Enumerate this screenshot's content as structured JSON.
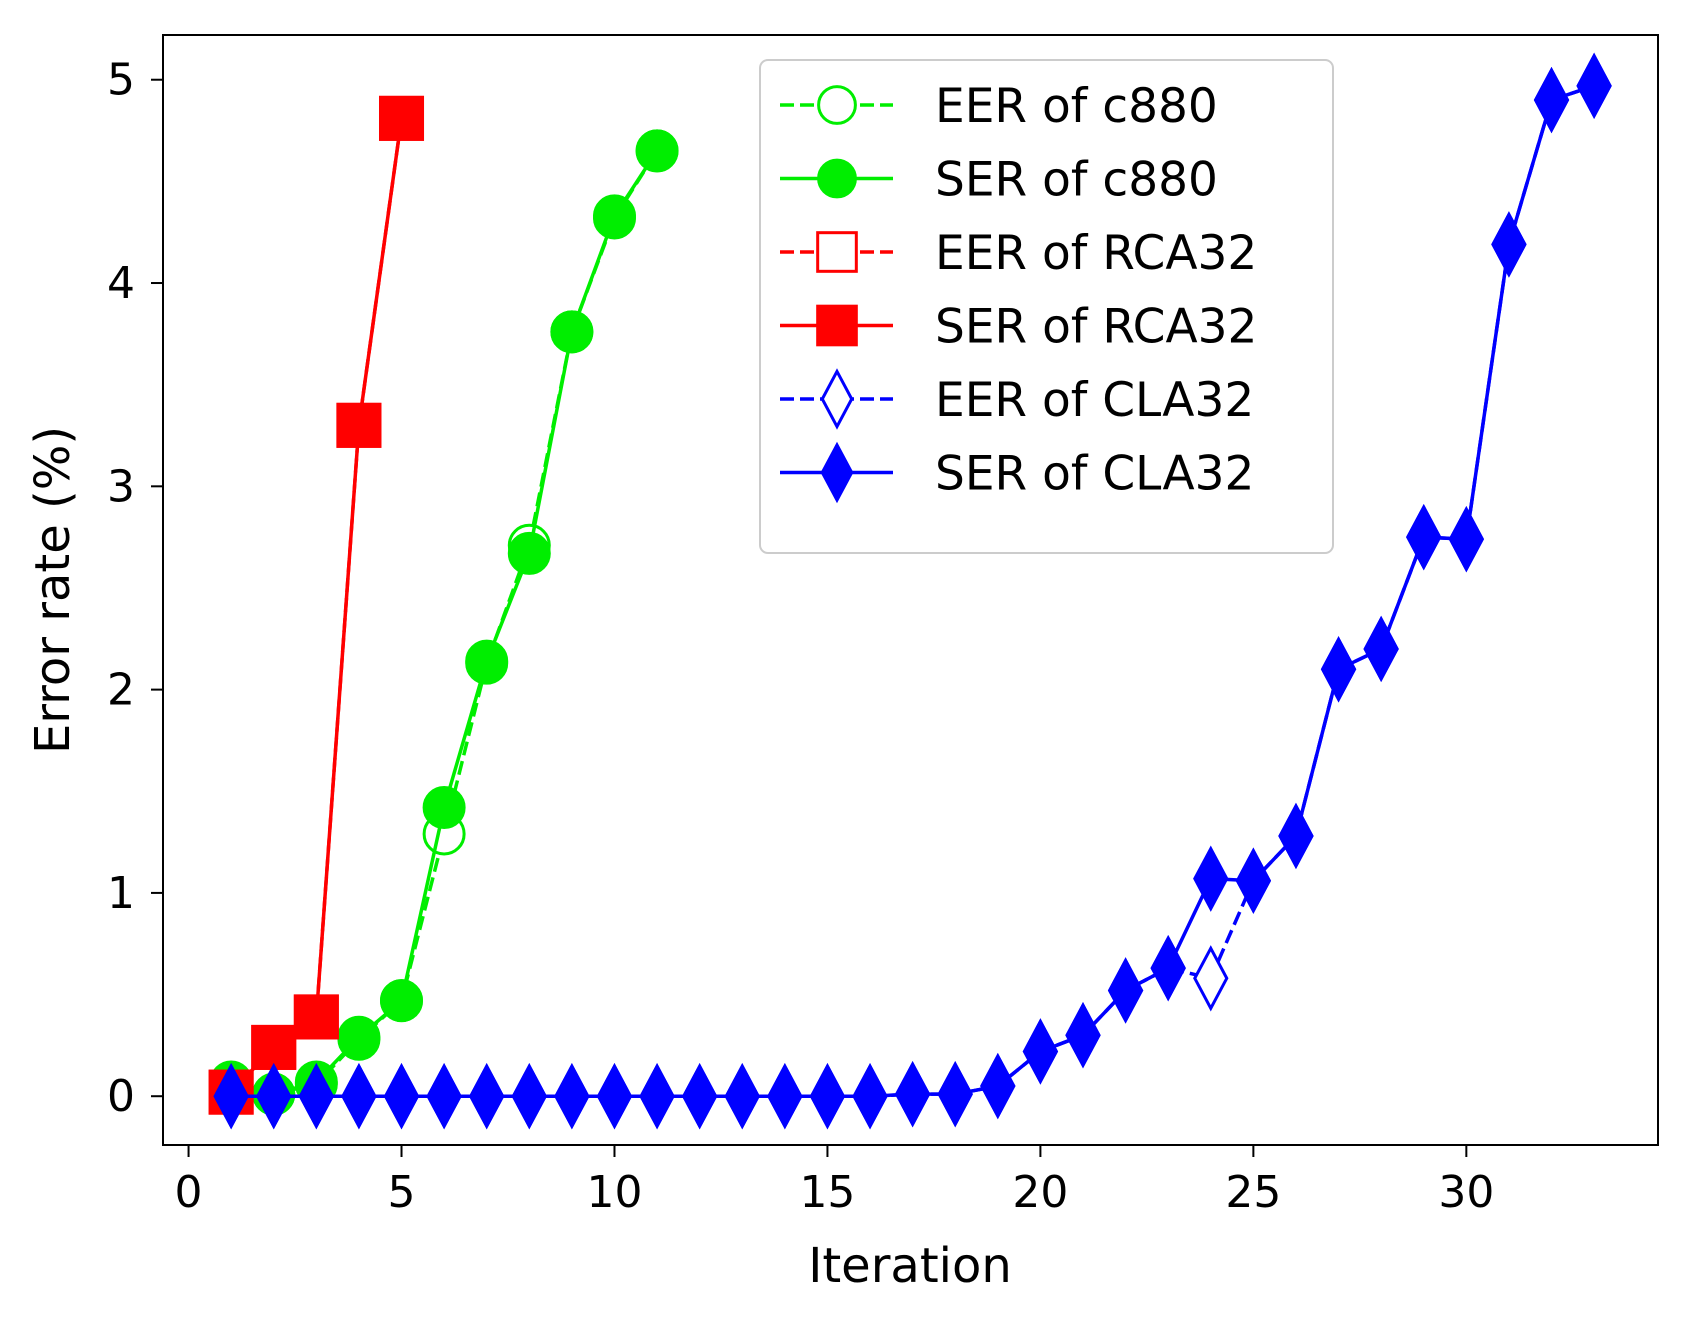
{
  "chart_data": {
    "type": "line",
    "title": "",
    "xlabel": "Iteration",
    "ylabel": "Error rate (%)",
    "xlim": [
      -0.6,
      34.5
    ],
    "ylim": [
      -0.24,
      5.22
    ],
    "xticks": [
      "0",
      "5",
      "10",
      "15",
      "20",
      "25",
      "30"
    ],
    "yticks": [
      "0",
      "1",
      "2",
      "3",
      "4",
      "5"
    ],
    "grid": false,
    "legend_position": "top-center",
    "series": [
      {
        "name": "EER of c880",
        "color": "#00ee00",
        "line_style": "dashed",
        "marker": "circle",
        "marker_fill": "none",
        "x": [
          1,
          2,
          3,
          4,
          5,
          6,
          7,
          8,
          9,
          10,
          11
        ],
        "y": [
          0.06,
          0.01,
          0.06,
          0.28,
          0.47,
          1.29,
          2.13,
          2.71,
          3.76,
          4.32,
          4.65
        ]
      },
      {
        "name": "SER of c880",
        "color": "#00ee00",
        "line_style": "solid",
        "marker": "circle",
        "marker_fill": "filled",
        "x": [
          1,
          2,
          3,
          4,
          5,
          6,
          7,
          8,
          9,
          10,
          11
        ],
        "y": [
          0.07,
          0.01,
          0.07,
          0.29,
          0.47,
          1.42,
          2.14,
          2.67,
          3.76,
          4.33,
          4.65
        ]
      },
      {
        "name": "EER of RCA32",
        "color": "#ff0000",
        "line_style": "dashed",
        "marker": "square",
        "marker_fill": "none",
        "x": [
          1,
          2,
          3,
          4,
          5
        ],
        "y": [
          0.02,
          0.24,
          0.39,
          3.3,
          4.81
        ]
      },
      {
        "name": "SER of RCA32",
        "color": "#ff0000",
        "line_style": "solid",
        "marker": "square",
        "marker_fill": "filled",
        "x": [
          1,
          2,
          3,
          4,
          5
        ],
        "y": [
          0.02,
          0.24,
          0.39,
          3.3,
          4.81
        ]
      },
      {
        "name": "EER of CLA32",
        "color": "#0000ff",
        "line_style": "dashed",
        "marker": "thin_diamond",
        "marker_fill": "none",
        "x": [
          1,
          2,
          3,
          4,
          5,
          6,
          7,
          8,
          9,
          10,
          11,
          12,
          13,
          14,
          15,
          16,
          17,
          18,
          19,
          20,
          21,
          22,
          23,
          24,
          25,
          26,
          27,
          28,
          29,
          30,
          31,
          32,
          33
        ],
        "y": [
          0,
          0,
          0,
          0,
          0,
          0,
          0,
          0,
          0,
          0,
          0,
          0,
          0,
          0,
          0,
          0,
          0.01,
          0.01,
          0.05,
          0.22,
          0.3,
          0.52,
          0.63,
          0.58,
          1.06,
          1.28,
          2.1,
          2.2,
          2.75,
          2.74,
          4.19,
          4.9,
          4.97
        ]
      },
      {
        "name": "SER of CLA32",
        "color": "#0000ff",
        "line_style": "solid",
        "marker": "thin_diamond",
        "marker_fill": "filled",
        "x": [
          1,
          2,
          3,
          4,
          5,
          6,
          7,
          8,
          9,
          10,
          11,
          12,
          13,
          14,
          15,
          16,
          17,
          18,
          19,
          20,
          21,
          22,
          23,
          24,
          25,
          26,
          27,
          28,
          29,
          30,
          31,
          32,
          33
        ],
        "y": [
          0,
          0,
          0,
          0,
          0,
          0,
          0,
          0,
          0,
          0,
          0,
          0,
          0,
          0,
          0,
          0,
          0.01,
          0.01,
          0.05,
          0.22,
          0.3,
          0.52,
          0.63,
          1.07,
          1.06,
          1.28,
          2.1,
          2.2,
          2.75,
          2.74,
          4.19,
          4.9,
          4.97
        ]
      }
    ]
  }
}
